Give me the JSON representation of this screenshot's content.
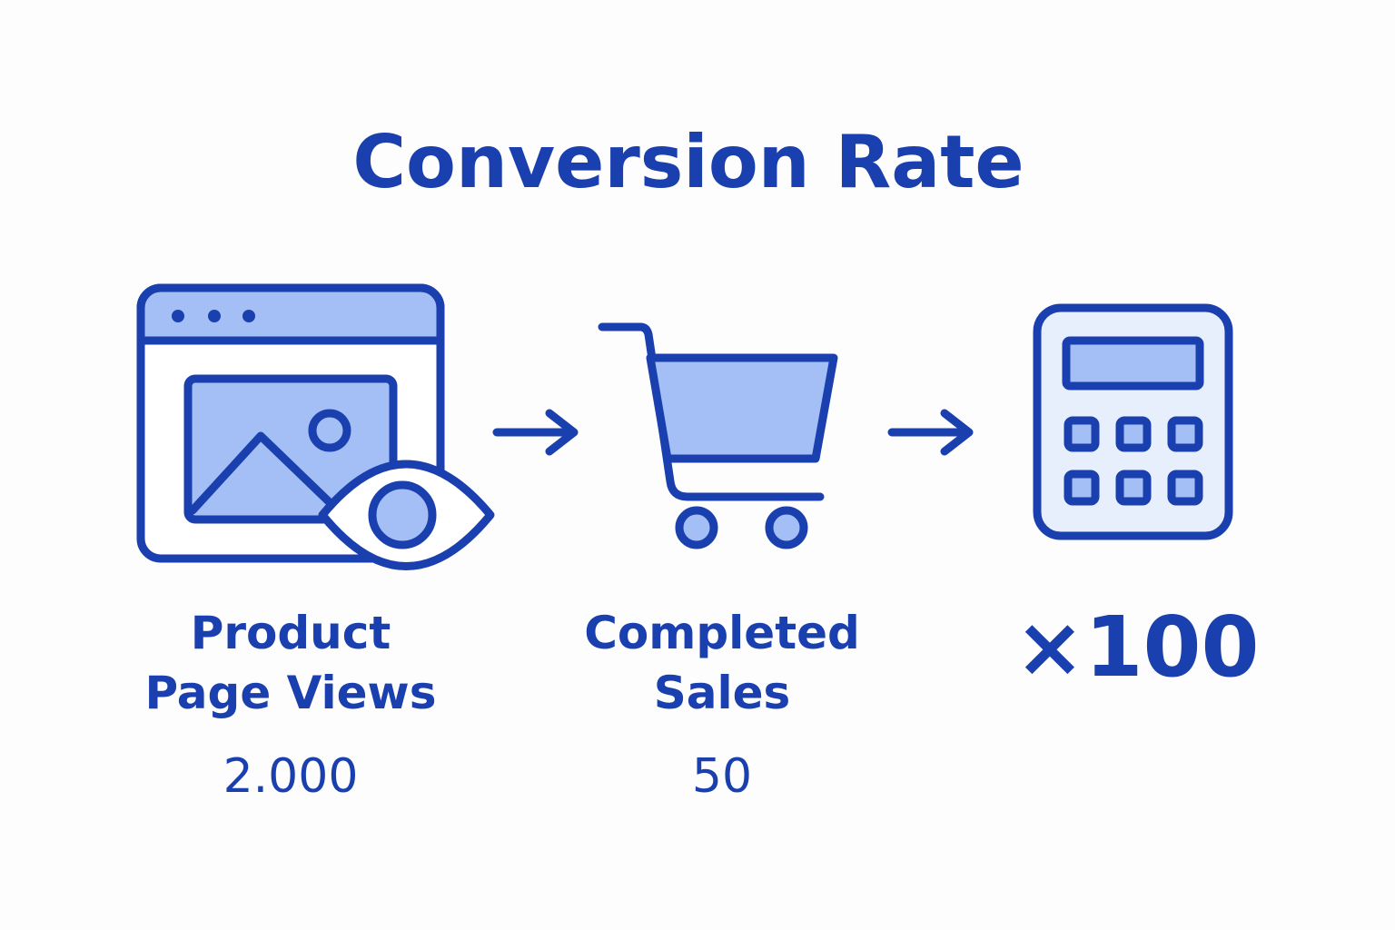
{
  "title": "Conversion Rate",
  "steps": [
    {
      "label_lines": [
        "Product",
        "Page Views"
      ],
      "value": "2.000"
    },
    {
      "label_lines": [
        "Completed",
        "Sales"
      ],
      "value": "50"
    },
    {
      "label": "×100"
    }
  ]
}
